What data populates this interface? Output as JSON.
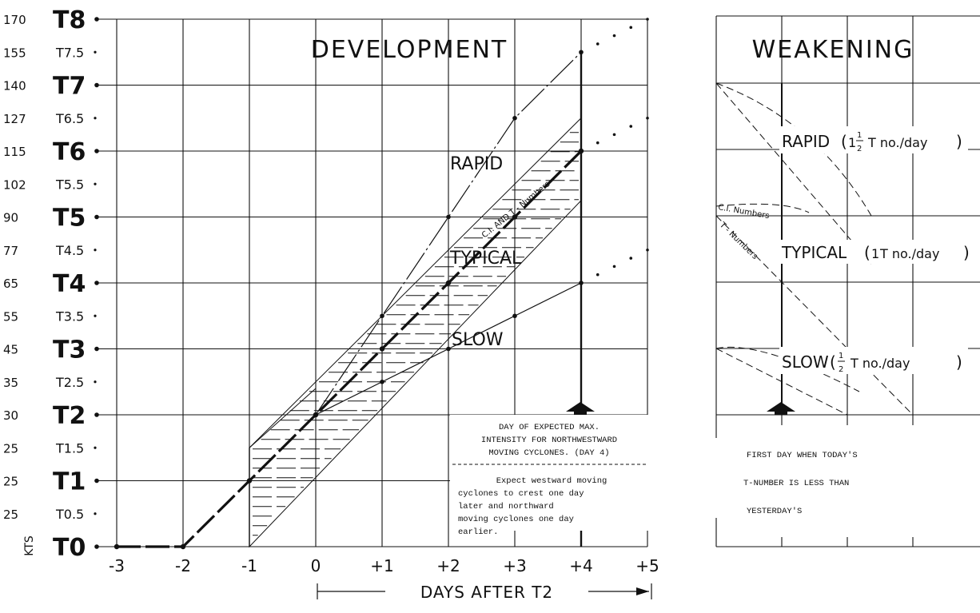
{
  "chart_data": [
    {
      "type": "line",
      "title": "DEVELOPMENT",
      "ylabel": "KTS",
      "xlabel": "DAYS AFTER T2",
      "x": [
        -3,
        -2,
        -1,
        0,
        1,
        2,
        3,
        4,
        5
      ],
      "x_tick_labels": [
        "-3",
        "-2",
        "-1",
        "0",
        "+1",
        "+2",
        "+3",
        "+4",
        "+5"
      ],
      "ylim": [
        0,
        8
      ],
      "y_ticks": [
        {
          "t": 8,
          "label": "T8",
          "kts": "170",
          "major": true
        },
        {
          "t": 7.5,
          "label": "T7.5",
          "kts": "155",
          "major": false
        },
        {
          "t": 7,
          "label": "T7",
          "kts": "140",
          "major": true
        },
        {
          "t": 6.5,
          "label": "T6.5",
          "kts": "127",
          "major": false
        },
        {
          "t": 6,
          "label": "T6",
          "kts": "115",
          "major": true
        },
        {
          "t": 5.5,
          "label": "T5.5",
          "kts": "102",
          "major": false
        },
        {
          "t": 5,
          "label": "T5",
          "kts": "90",
          "major": true
        },
        {
          "t": 4.5,
          "label": "T4.5",
          "kts": "77",
          "major": false
        },
        {
          "t": 4,
          "label": "T4",
          "kts": "65",
          "major": true
        },
        {
          "t": 3.5,
          "label": "T3.5",
          "kts": "55",
          "major": false
        },
        {
          "t": 3,
          "label": "T3",
          "kts": "45",
          "major": true
        },
        {
          "t": 2.5,
          "label": "T2.5",
          "kts": "35",
          "major": false
        },
        {
          "t": 2,
          "label": "T2",
          "kts": "30",
          "major": true
        },
        {
          "t": 1.5,
          "label": "T1.5",
          "kts": "25",
          "major": false
        },
        {
          "t": 1,
          "label": "T1",
          "kts": "25",
          "major": true
        },
        {
          "t": 0.5,
          "label": "T0.5",
          "kts": "25",
          "major": false
        },
        {
          "t": 0,
          "label": "T0",
          "kts": "",
          "major": true
        }
      ],
      "series": [
        {
          "name": "RAPID",
          "x": [
            1,
            2,
            3,
            4
          ],
          "y": [
            3.5,
            5,
            6.5,
            7.5
          ],
          "dotted_to": [
            5,
            8
          ]
        },
        {
          "name": "TYPICAL",
          "x": [
            -3,
            -2,
            -1,
            0,
            1,
            2,
            3,
            4
          ],
          "y": [
            0,
            0,
            1,
            2,
            3,
            4,
            5,
            6
          ],
          "dotted_to": [
            5,
            6.5
          ]
        },
        {
          "name": "SLOW",
          "x": [
            1,
            2,
            3,
            4
          ],
          "y": [
            2.5,
            3,
            3.5,
            4
          ],
          "dotted_to": [
            5,
            4.5
          ]
        }
      ],
      "band": {
        "x": [
          -1,
          4
        ],
        "upper": [
          1.5,
          6.5
        ],
        "lower": [
          0,
          5.25
        ]
      },
      "band_label": "C.I. AND T - Numbers",
      "arrow_at_day": 4,
      "note_1": [
        "DAY OF EXPECTED MAX.",
        "INTENSITY FOR NORTHWESTWARD",
        "MOVING CYCLONES. (DAY 4)"
      ],
      "note_2": [
        "Expect westward moving",
        "cyclones to crest one day",
        "later and northward",
        "moving cyclones one day",
        "earlier."
      ]
    },
    {
      "type": "line",
      "title": "WEAKENING",
      "categories": [
        {
          "name": "RAPID",
          "rate_whole": "",
          "rate_num": "1",
          "rate_den": "2",
          "rate_unit": "T no./day",
          "whole": "1"
        },
        {
          "name": "TYPICAL",
          "rate_whole": "1",
          "rate_unit": "T no./day"
        },
        {
          "name": "SLOW",
          "rate_num": "1",
          "rate_den": "2",
          "rate_unit": "T no./day"
        }
      ],
      "curve_labels": {
        "ci": "C.I. Numbers",
        "t": "T - Numbers"
      },
      "note": [
        "FIRST DAY WHEN TODAY'S",
        "T-NUMBER IS LESS THAN",
        "YESTERDAY'S"
      ]
    }
  ]
}
